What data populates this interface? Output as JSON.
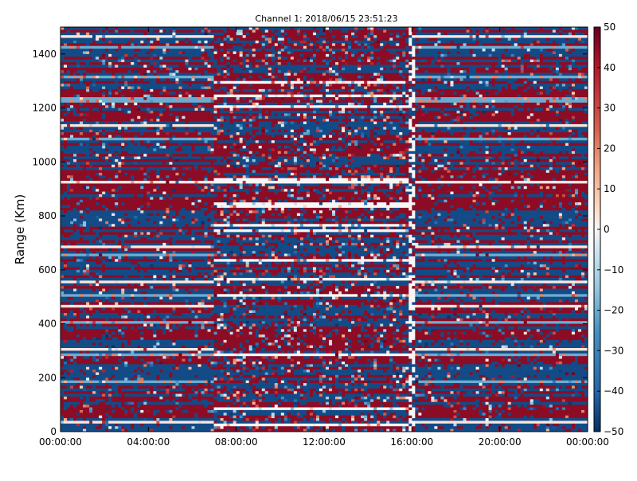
{
  "chart_data": {
    "type": "heatmap",
    "title": "Channel 1: 2018/06/15 23:51:23",
    "xlabel": "",
    "ylabel": "Range (Km)",
    "x_tick_labels": [
      "00:00:00",
      "04:00:00",
      "08:00:00",
      "12:00:00",
      "16:00:00",
      "20:00:00",
      "00:00:00"
    ],
    "x_tick_hours": [
      0,
      4,
      8,
      12,
      16,
      20,
      24
    ],
    "xlim_hours": [
      0,
      24
    ],
    "y_ticks": [
      0,
      200,
      400,
      600,
      800,
      1000,
      1200,
      1400
    ],
    "ylim": [
      0,
      1500
    ],
    "colorbar": {
      "ticks": [
        50,
        40,
        30,
        20,
        10,
        0,
        -10,
        -20,
        -30,
        -40,
        -50
      ],
      "range": [
        -50,
        50
      ],
      "colormap": "RdBu_r",
      "low_color": "#053061",
      "mid_color": "#f7f7f7",
      "high_color": "#67001f"
    },
    "segments": [
      {
        "start_hour": 0,
        "end_hour": 6.95,
        "pattern": "horizontal-bands"
      },
      {
        "start_hour": 6.95,
        "end_hour": 15.9,
        "pattern": "mixed"
      },
      {
        "start_hour": 15.9,
        "end_hour": 16.1,
        "pattern": "gap"
      },
      {
        "start_hour": 16.1,
        "end_hour": 24,
        "pattern": "horizontal-bands"
      }
    ],
    "grid": false
  }
}
